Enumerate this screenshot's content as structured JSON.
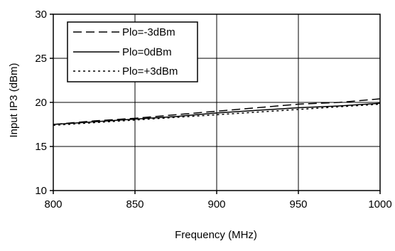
{
  "chart_data": {
    "type": "line",
    "title": "",
    "xlabel": "Frequency (MHz)",
    "ylabel": "Input IP3 (dBm)",
    "xlim": [
      800,
      1000
    ],
    "ylim": [
      10,
      30
    ],
    "xticks": [
      800,
      850,
      900,
      950,
      1000
    ],
    "yticks": [
      10,
      15,
      20,
      25,
      30
    ],
    "xtick_labels": [
      "800",
      "850",
      "900",
      "950",
      "1000"
    ],
    "ytick_labels": [
      "10",
      "15",
      "20",
      "25",
      "30"
    ],
    "grid": true,
    "legend_position": "top-left",
    "series": [
      {
        "name": "Plo=-3dBm",
        "style": "dashed",
        "color": "#000000",
        "x": [
          800,
          825,
          850,
          875,
          900,
          925,
          950,
          975,
          1000
        ],
        "y": [
          17.5,
          17.9,
          18.2,
          18.6,
          19.0,
          19.4,
          19.8,
          20.0,
          20.4
        ]
      },
      {
        "name": "Plo=0dBm",
        "style": "solid",
        "color": "#000000",
        "x": [
          800,
          825,
          850,
          875,
          900,
          925,
          950,
          975,
          1000
        ],
        "y": [
          17.5,
          17.8,
          18.1,
          18.4,
          18.8,
          19.1,
          19.4,
          19.6,
          19.9
        ]
      },
      {
        "name": "Plo=+3dBm",
        "style": "dotted",
        "color": "#000000",
        "x": [
          800,
          825,
          850,
          875,
          900,
          925,
          950,
          975,
          1000
        ],
        "y": [
          17.4,
          17.7,
          18.0,
          18.3,
          18.6,
          18.9,
          19.2,
          19.5,
          19.8
        ]
      }
    ]
  }
}
